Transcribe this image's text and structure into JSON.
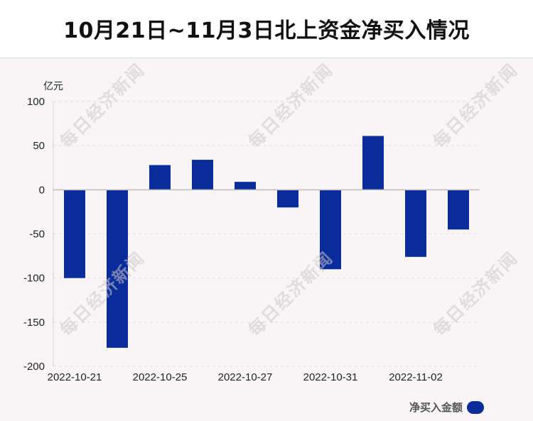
{
  "header": {
    "title": "10月21日~11月3日北上资金净买入情况"
  },
  "watermark": "每日经济新闻",
  "chart_data": {
    "type": "bar",
    "title": "10月21日~11月3日北上资金净买入情况",
    "ylabel": "亿元",
    "xlabel": "",
    "ylim": [
      -200,
      100
    ],
    "yticks": [
      100,
      50,
      0,
      -50,
      -100,
      -150,
      -200
    ],
    "x_tick_labels": [
      "2022-10-21",
      "2022-10-25",
      "2022-10-27",
      "2022-10-31",
      "2022-11-02"
    ],
    "x_tick_indices": [
      0,
      2,
      4,
      6,
      8
    ],
    "bar_color": "#0a2d9c",
    "legend_position": "bottom-right",
    "grid": true,
    "series": [
      {
        "name": "净买入金额",
        "values": [
          -100,
          -179,
          28,
          34,
          9,
          -20,
          -90,
          61,
          -76,
          -45
        ]
      }
    ]
  }
}
